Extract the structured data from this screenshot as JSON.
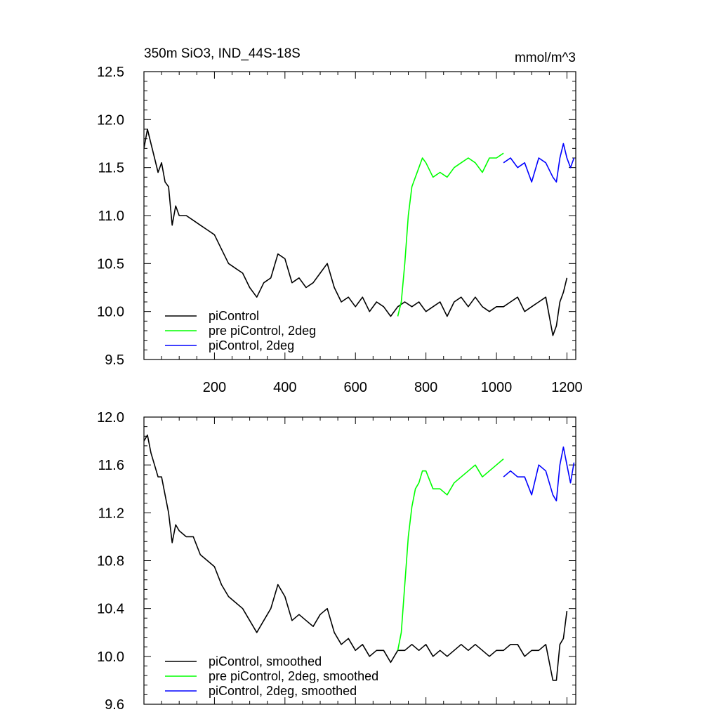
{
  "chart_data": [
    {
      "type": "line",
      "title": "350m SiO3, IND_44S-18S",
      "units": "mmol/m^3",
      "xlim": [
        0,
        1225
      ],
      "ylim": [
        9.5,
        12.5
      ],
      "x_ticks": [
        200,
        400,
        600,
        800,
        1000,
        1200
      ],
      "y_ticks": [
        "9.5",
        "10.0",
        "10.5",
        "11.0",
        "11.5",
        "12.0",
        "12.5"
      ],
      "series": [
        {
          "name": "piControl",
          "color": "#000000",
          "points": [
            [
              0,
              11.7
            ],
            [
              10,
              11.9
            ],
            [
              20,
              11.75
            ],
            [
              30,
              11.6
            ],
            [
              40,
              11.45
            ],
            [
              50,
              11.55
            ],
            [
              60,
              11.35
            ],
            [
              70,
              11.3
            ],
            [
              80,
              10.9
            ],
            [
              90,
              11.1
            ],
            [
              100,
              11.0
            ],
            [
              120,
              11.0
            ],
            [
              140,
              10.95
            ],
            [
              160,
              10.9
            ],
            [
              180,
              10.85
            ],
            [
              200,
              10.8
            ],
            [
              220,
              10.65
            ],
            [
              240,
              10.5
            ],
            [
              260,
              10.45
            ],
            [
              280,
              10.4
            ],
            [
              300,
              10.25
            ],
            [
              320,
              10.15
            ],
            [
              340,
              10.3
            ],
            [
              360,
              10.35
            ],
            [
              380,
              10.6
            ],
            [
              400,
              10.55
            ],
            [
              420,
              10.3
            ],
            [
              440,
              10.35
            ],
            [
              460,
              10.25
            ],
            [
              480,
              10.3
            ],
            [
              500,
              10.4
            ],
            [
              520,
              10.5
            ],
            [
              540,
              10.25
            ],
            [
              560,
              10.1
            ],
            [
              580,
              10.15
            ],
            [
              600,
              10.05
            ],
            [
              620,
              10.15
            ],
            [
              640,
              10.0
            ],
            [
              660,
              10.1
            ],
            [
              680,
              10.05
            ],
            [
              700,
              9.95
            ],
            [
              720,
              10.05
            ],
            [
              740,
              10.1
            ],
            [
              760,
              10.05
            ],
            [
              780,
              10.1
            ],
            [
              800,
              10.0
            ],
            [
              820,
              10.05
            ],
            [
              840,
              10.1
            ],
            [
              860,
              9.95
            ],
            [
              880,
              10.1
            ],
            [
              900,
              10.15
            ],
            [
              920,
              10.05
            ],
            [
              940,
              10.15
            ],
            [
              960,
              10.05
            ],
            [
              980,
              10.0
            ],
            [
              1000,
              10.05
            ],
            [
              1020,
              10.05
            ],
            [
              1040,
              10.1
            ],
            [
              1060,
              10.15
            ],
            [
              1080,
              10.0
            ],
            [
              1100,
              10.05
            ],
            [
              1120,
              10.1
            ],
            [
              1140,
              10.15
            ],
            [
              1160,
              9.75
            ],
            [
              1170,
              9.85
            ],
            [
              1180,
              10.1
            ],
            [
              1190,
              10.2
            ],
            [
              1200,
              10.35
            ]
          ]
        },
        {
          "name": "pre piControl, 2deg",
          "color": "#00ff00",
          "points": [
            [
              720,
              9.95
            ],
            [
              730,
              10.1
            ],
            [
              740,
              10.5
            ],
            [
              750,
              11.0
            ],
            [
              760,
              11.3
            ],
            [
              770,
              11.4
            ],
            [
              780,
              11.5
            ],
            [
              790,
              11.6
            ],
            [
              800,
              11.55
            ],
            [
              820,
              11.4
            ],
            [
              840,
              11.45
            ],
            [
              860,
              11.4
            ],
            [
              880,
              11.5
            ],
            [
              900,
              11.55
            ],
            [
              920,
              11.6
            ],
            [
              940,
              11.55
            ],
            [
              960,
              11.45
            ],
            [
              980,
              11.6
            ],
            [
              1000,
              11.6
            ],
            [
              1020,
              11.65
            ]
          ]
        },
        {
          "name": "piControl, 2deg",
          "color": "#0000ff",
          "points": [
            [
              1020,
              11.55
            ],
            [
              1040,
              11.6
            ],
            [
              1060,
              11.5
            ],
            [
              1080,
              11.55
            ],
            [
              1100,
              11.35
            ],
            [
              1120,
              11.6
            ],
            [
              1140,
              11.55
            ],
            [
              1160,
              11.4
            ],
            [
              1170,
              11.35
            ],
            [
              1180,
              11.6
            ],
            [
              1190,
              11.75
            ],
            [
              1200,
              11.6
            ],
            [
              1210,
              11.5
            ],
            [
              1220,
              11.6
            ]
          ]
        }
      ]
    },
    {
      "type": "line",
      "title": "",
      "xlim": [
        0,
        1225
      ],
      "ylim": [
        9.6,
        12.0
      ],
      "y_ticks": [
        "9.6",
        "10.0",
        "10.4",
        "10.8",
        "11.2",
        "11.6",
        "12.0"
      ],
      "series": [
        {
          "name": "piControl, smoothed",
          "color": "#000000",
          "points": [
            [
              0,
              11.8
            ],
            [
              10,
              11.85
            ],
            [
              20,
              11.7
            ],
            [
              30,
              11.6
            ],
            [
              40,
              11.5
            ],
            [
              50,
              11.5
            ],
            [
              60,
              11.35
            ],
            [
              70,
              11.2
            ],
            [
              80,
              10.95
            ],
            [
              90,
              11.1
            ],
            [
              100,
              11.05
            ],
            [
              120,
              11.0
            ],
            [
              140,
              11.0
            ],
            [
              160,
              10.85
            ],
            [
              180,
              10.8
            ],
            [
              200,
              10.75
            ],
            [
              220,
              10.6
            ],
            [
              240,
              10.5
            ],
            [
              260,
              10.45
            ],
            [
              280,
              10.4
            ],
            [
              300,
              10.3
            ],
            [
              320,
              10.2
            ],
            [
              340,
              10.3
            ],
            [
              360,
              10.4
            ],
            [
              380,
              10.6
            ],
            [
              400,
              10.5
            ],
            [
              420,
              10.3
            ],
            [
              440,
              10.35
            ],
            [
              460,
              10.3
            ],
            [
              480,
              10.25
            ],
            [
              500,
              10.35
            ],
            [
              520,
              10.4
            ],
            [
              540,
              10.2
            ],
            [
              560,
              10.1
            ],
            [
              580,
              10.15
            ],
            [
              600,
              10.05
            ],
            [
              620,
              10.1
            ],
            [
              640,
              10.0
            ],
            [
              660,
              10.05
            ],
            [
              680,
              10.05
            ],
            [
              700,
              9.95
            ],
            [
              720,
              10.05
            ],
            [
              740,
              10.05
            ],
            [
              760,
              10.1
            ],
            [
              780,
              10.05
            ],
            [
              800,
              10.1
            ],
            [
              820,
              10.0
            ],
            [
              840,
              10.05
            ],
            [
              860,
              10.0
            ],
            [
              880,
              10.05
            ],
            [
              900,
              10.1
            ],
            [
              920,
              10.05
            ],
            [
              940,
              10.1
            ],
            [
              960,
              10.05
            ],
            [
              980,
              10.0
            ],
            [
              1000,
              10.05
            ],
            [
              1020,
              10.05
            ],
            [
              1040,
              10.1
            ],
            [
              1060,
              10.1
            ],
            [
              1080,
              10.0
            ],
            [
              1100,
              10.05
            ],
            [
              1120,
              10.05
            ],
            [
              1140,
              10.1
            ],
            [
              1160,
              9.8
            ],
            [
              1170,
              9.8
            ],
            [
              1180,
              10.1
            ],
            [
              1190,
              10.15
            ],
            [
              1200,
              10.38
            ]
          ]
        },
        {
          "name": "pre piControl, 2deg, smoothed",
          "color": "#00ff00",
          "points": [
            [
              720,
              10.05
            ],
            [
              730,
              10.2
            ],
            [
              740,
              10.6
            ],
            [
              750,
              11.0
            ],
            [
              760,
              11.25
            ],
            [
              770,
              11.4
            ],
            [
              780,
              11.45
            ],
            [
              790,
              11.55
            ],
            [
              800,
              11.55
            ],
            [
              820,
              11.4
            ],
            [
              840,
              11.4
            ],
            [
              860,
              11.35
            ],
            [
              880,
              11.45
            ],
            [
              900,
              11.5
            ],
            [
              920,
              11.55
            ],
            [
              940,
              11.6
            ],
            [
              960,
              11.5
            ],
            [
              980,
              11.55
            ],
            [
              1000,
              11.6
            ],
            [
              1020,
              11.65
            ]
          ]
        },
        {
          "name": "piControl, 2deg, smoothed",
          "color": "#0000ff",
          "points": [
            [
              1020,
              11.5
            ],
            [
              1040,
              11.55
            ],
            [
              1060,
              11.5
            ],
            [
              1080,
              11.5
            ],
            [
              1100,
              11.35
            ],
            [
              1120,
              11.6
            ],
            [
              1140,
              11.55
            ],
            [
              1160,
              11.35
            ],
            [
              1170,
              11.3
            ],
            [
              1180,
              11.6
            ],
            [
              1190,
              11.75
            ],
            [
              1200,
              11.6
            ],
            [
              1210,
              11.45
            ],
            [
              1220,
              11.62
            ]
          ]
        }
      ]
    }
  ]
}
